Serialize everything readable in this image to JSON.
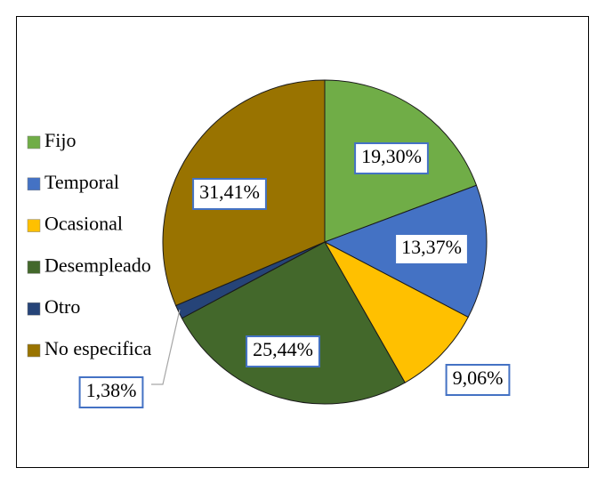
{
  "chart_data": {
    "type": "pie",
    "categories": [
      "Fijo",
      "Temporal",
      "Ocasional",
      "Desempleado",
      "Otro",
      "No especifica"
    ],
    "values": [
      19.3,
      13.37,
      9.06,
      25.44,
      1.38,
      31.41
    ],
    "value_labels": [
      "19,30%",
      "13,37%",
      "9,06%",
      "25,44%",
      "1,38%",
      "31,41%"
    ],
    "colors": [
      "#70ad47",
      "#4472c4",
      "#ffc000",
      "#43682b",
      "#264478",
      "#997300"
    ],
    "legend": "left"
  }
}
